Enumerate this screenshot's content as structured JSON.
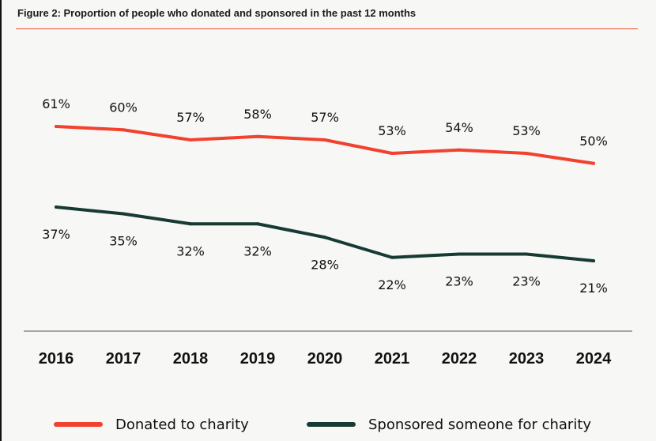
{
  "figure": {
    "title": "Figure 2: Proportion of people who donated and sponsored in the past 12 months"
  },
  "colors": {
    "donated": "#f2412e",
    "sponsored": "#173a33",
    "rule": "#e8502f"
  },
  "chart_data": {
    "type": "line",
    "title": "Figure 2: Proportion of people who donated and sponsored in the past 12 months",
    "xlabel": "",
    "ylabel": "",
    "x": [
      "2016",
      "2017",
      "2018",
      "2019",
      "2020",
      "2021",
      "2022",
      "2023",
      "2024"
    ],
    "ylim": [
      15,
      65
    ],
    "grid": false,
    "legend_position": "bottom",
    "series": [
      {
        "name": "Donated to charity",
        "values": [
          61,
          60,
          57,
          58,
          57,
          53,
          54,
          53,
          50
        ],
        "labels": [
          "61%",
          "60%",
          "57%",
          "58%",
          "57%",
          "53%",
          "54%",
          "53%",
          "50%"
        ]
      },
      {
        "name": "Sponsored someone for charity",
        "values": [
          37,
          35,
          32,
          32,
          28,
          22,
          23,
          23,
          21
        ],
        "labels": [
          "37%",
          "35%",
          "32%",
          "32%",
          "28%",
          "22%",
          "23%",
          "23%",
          "21%"
        ]
      }
    ]
  },
  "legend": {
    "donated_label": "Donated to charity",
    "sponsored_label": "Sponsored someone for charity"
  }
}
